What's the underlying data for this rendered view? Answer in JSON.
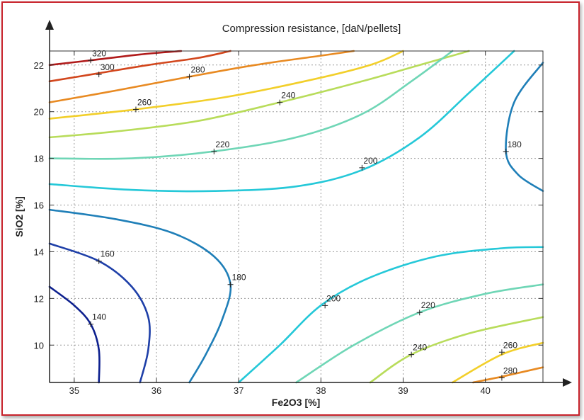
{
  "chart_data": {
    "type": "contour",
    "title": "Compression resistance, [daN/pellets]",
    "xlabel": "Fe2O3 [%]",
    "ylabel": "SiO2 [%]",
    "xlim": [
      34.7,
      40.7
    ],
    "ylim": [
      8.4,
      22.6
    ],
    "xticks": [
      "35",
      "36",
      "37",
      "38",
      "39",
      "40"
    ],
    "yticks": [
      "10",
      "12",
      "14",
      "16",
      "18",
      "20",
      "22"
    ],
    "grid": true,
    "level_colors": {
      "140": "#0c1f8e",
      "160": "#1e3fa8",
      "180": "#1f7fb8",
      "200": "#25c8d8",
      "220": "#6fd6b6",
      "240": "#b8dc5a",
      "260": "#f2cf2a",
      "280": "#e88a22",
      "300": "#d2461c",
      "320": "#b01a1a"
    },
    "contours": [
      {
        "level": "320",
        "label_at": [
          35.2,
          22.5
        ],
        "points": [
          [
            34.7,
            22.0
          ],
          [
            35.2,
            22.2
          ],
          [
            35.8,
            22.45
          ],
          [
            36.3,
            22.6
          ]
        ]
      },
      {
        "level": "300",
        "label_at": [
          35.3,
          21.9
        ],
        "points": [
          [
            34.7,
            21.3
          ],
          [
            35.3,
            21.65
          ],
          [
            35.9,
            22.0
          ],
          [
            36.5,
            22.3
          ],
          [
            36.9,
            22.6
          ]
        ]
      },
      {
        "level": "280",
        "label_at": [
          36.4,
          21.8
        ],
        "points": [
          [
            34.7,
            20.4
          ],
          [
            35.5,
            20.9
          ],
          [
            36.4,
            21.5
          ],
          [
            37.2,
            22.0
          ],
          [
            38.0,
            22.4
          ],
          [
            38.4,
            22.6
          ]
        ]
      },
      {
        "level": "260",
        "label_at": [
          35.75,
          20.4
        ],
        "points": [
          [
            34.7,
            19.7
          ],
          [
            35.75,
            20.1
          ],
          [
            36.8,
            20.6
          ],
          [
            37.8,
            21.3
          ],
          [
            38.6,
            22.0
          ],
          [
            39.0,
            22.6
          ]
        ]
      },
      {
        "level": "240",
        "label_at": [
          37.5,
          20.7
        ],
        "points": [
          [
            34.7,
            18.9
          ],
          [
            35.5,
            19.15
          ],
          [
            36.5,
            19.6
          ],
          [
            37.5,
            20.4
          ],
          [
            38.5,
            21.3
          ],
          [
            39.3,
            22.1
          ],
          [
            39.8,
            22.6
          ]
        ]
      },
      {
        "level": "220",
        "label_at": [
          36.7,
          18.6
        ],
        "points": [
          [
            34.7,
            18.0
          ],
          [
            35.7,
            18.0
          ],
          [
            36.7,
            18.3
          ],
          [
            37.7,
            18.9
          ],
          [
            38.5,
            19.9
          ],
          [
            39.1,
            21.3
          ],
          [
            39.6,
            22.6
          ]
        ]
      },
      {
        "level": "200",
        "label_at": [
          38.5,
          17.9
        ],
        "points": [
          [
            34.7,
            16.9
          ],
          [
            35.7,
            16.65
          ],
          [
            36.7,
            16.6
          ],
          [
            37.7,
            16.8
          ],
          [
            38.5,
            17.5
          ],
          [
            39.2,
            18.9
          ],
          [
            39.8,
            20.8
          ],
          [
            40.35,
            22.6
          ]
        ]
      },
      {
        "level": "180",
        "label_at": [
          40.25,
          18.6
        ],
        "points": [
          [
            40.7,
            22.1
          ],
          [
            40.35,
            20.4
          ],
          [
            40.25,
            18.3
          ],
          [
            40.4,
            17.3
          ],
          [
            40.7,
            16.6
          ]
        ]
      },
      {
        "level": "180",
        "label_at": [
          36.9,
          12.9
        ],
        "points": [
          [
            34.7,
            15.8
          ],
          [
            35.5,
            15.4
          ],
          [
            36.2,
            14.8
          ],
          [
            36.7,
            13.8
          ],
          [
            36.9,
            12.6
          ],
          [
            36.8,
            11.1
          ],
          [
            36.6,
            9.6
          ],
          [
            36.4,
            8.4
          ]
        ]
      },
      {
        "level": "160",
        "label_at": [
          35.3,
          13.9
        ],
        "points": [
          [
            34.7,
            14.35
          ],
          [
            35.3,
            13.6
          ],
          [
            35.7,
            12.5
          ],
          [
            35.9,
            11.2
          ],
          [
            35.9,
            9.8
          ],
          [
            35.8,
            8.4
          ]
        ]
      },
      {
        "level": "140",
        "label_at": [
          35.2,
          11.2
        ],
        "points": [
          [
            34.7,
            12.5
          ],
          [
            35.0,
            11.7
          ],
          [
            35.2,
            10.9
          ],
          [
            35.3,
            9.8
          ],
          [
            35.3,
            8.4
          ]
        ]
      },
      {
        "level": "200",
        "label_at": [
          38.05,
          12.0
        ],
        "points": [
          [
            37.0,
            8.4
          ],
          [
            37.5,
            10.0
          ],
          [
            38.0,
            11.7
          ],
          [
            38.6,
            12.9
          ],
          [
            39.4,
            13.8
          ],
          [
            40.2,
            14.15
          ],
          [
            40.7,
            14.2
          ]
        ]
      },
      {
        "level": "220",
        "label_at": [
          39.2,
          11.7
        ],
        "points": [
          [
            37.7,
            8.4
          ],
          [
            38.4,
            10.0
          ],
          [
            39.2,
            11.4
          ],
          [
            40.0,
            12.2
          ],
          [
            40.7,
            12.6
          ]
        ]
      },
      {
        "level": "240",
        "label_at": [
          39.1,
          9.9
        ],
        "points": [
          [
            38.6,
            8.4
          ],
          [
            39.1,
            9.6
          ],
          [
            39.8,
            10.5
          ],
          [
            40.7,
            11.2
          ]
        ]
      },
      {
        "level": "260",
        "label_at": [
          40.2,
          10.0
        ],
        "points": [
          [
            39.6,
            8.4
          ],
          [
            40.2,
            9.6
          ],
          [
            40.7,
            10.1
          ]
        ]
      },
      {
        "level": "280",
        "label_at": [
          40.2,
          8.9
        ],
        "points": [
          [
            39.85,
            8.4
          ],
          [
            40.2,
            8.65
          ],
          [
            40.7,
            9.05
          ]
        ]
      }
    ]
  }
}
